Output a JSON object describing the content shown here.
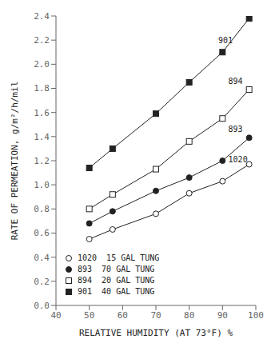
{
  "chart_data": {
    "type": "line",
    "x": [
      50,
      57,
      70,
      80,
      90,
      98
    ],
    "series": [
      {
        "name": "1020  15 GAL TUNG",
        "color": "#222222",
        "marker": "open-circle",
        "values": [
          0.55,
          0.63,
          0.76,
          0.93,
          1.03,
          1.17
        ]
      },
      {
        "name": "893  70 GAL TUNG",
        "color": "#222222",
        "marker": "circle",
        "values": [
          0.68,
          0.78,
          0.95,
          1.06,
          1.2,
          1.39
        ]
      },
      {
        "name": "894  20 GAL TUNG",
        "color": "#222222",
        "marker": "open-square",
        "values": [
          0.8,
          0.92,
          1.13,
          1.36,
          1.55,
          1.79
        ]
      },
      {
        "name": "901  40 GAL TUNG",
        "color": "#222222",
        "marker": "square",
        "values": [
          1.14,
          1.3,
          1.59,
          1.85,
          2.1,
          2.38
        ]
      }
    ],
    "annotations": [
      {
        "text": "1020",
        "x": 91.5,
        "y": 1.18
      },
      {
        "text": "893",
        "x": 91.5,
        "y": 1.43
      },
      {
        "text": "894",
        "x": 91.5,
        "y": 1.83
      },
      {
        "text": "901",
        "x": 88.5,
        "y": 2.17
      }
    ],
    "xlabel": "RELATIVE HUMIDITY (AT 73°F)  %",
    "ylabel": "RATE OF PERMEATION, g/m²/h/mil",
    "xlim": [
      40,
      100
    ],
    "ylim": [
      0,
      2.4
    ],
    "xticks": [
      40,
      50,
      60,
      70,
      80,
      90,
      100
    ],
    "yticks": [
      {
        "value": 0,
        "label": "0.0"
      },
      0.2,
      0.4,
      0.6,
      0.8,
      {
        "value": 1.0,
        "label": "1.0"
      },
      1.2,
      1.4,
      1.6,
      1.8,
      {
        "value": 2.0,
        "label": "2.0"
      },
      2.2,
      2.4
    ],
    "grid": false,
    "legend": "lower left"
  }
}
